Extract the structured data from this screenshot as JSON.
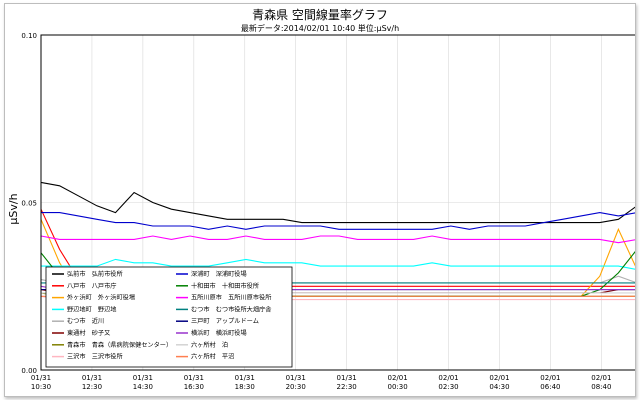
{
  "chart_data": {
    "type": "line",
    "title": "青森県 空間線量率グラフ",
    "subtitle": "最新データ:2014/02/01 10:40  単位:μSv/h",
    "ylabel": "μSv/h",
    "xlabel": "",
    "ylim": [
      0,
      0.1
    ],
    "yticks": [
      "0.00",
      "0.05",
      "0.10"
    ],
    "grid": true,
    "legend_position": "bottom-left-inside",
    "x_ticks": [
      {
        "date": "01/31",
        "time": "10:30"
      },
      {
        "date": "01/31",
        "time": "12:30"
      },
      {
        "date": "01/31",
        "time": "14:30"
      },
      {
        "date": "01/31",
        "time": "16:30"
      },
      {
        "date": "01/31",
        "time": "18:30"
      },
      {
        "date": "01/31",
        "time": "20:30"
      },
      {
        "date": "01/31",
        "time": "22:30"
      },
      {
        "date": "02/01",
        "time": "00:30"
      },
      {
        "date": "02/01",
        "time": "02:30"
      },
      {
        "date": "02/01",
        "time": "04:30"
      },
      {
        "date": "02/01",
        "time": "06:40"
      },
      {
        "date": "02/01",
        "time": "08:40"
      }
    ],
    "series": [
      {
        "name": "弘前市　弘前市役所",
        "color": "#000000",
        "values": [
          0.056,
          0.055,
          0.052,
          0.049,
          0.047,
          0.053,
          0.05,
          0.048,
          0.047,
          0.046,
          0.045,
          0.045,
          0.045,
          0.045,
          0.044,
          0.044,
          0.044,
          0.044,
          0.044,
          0.044,
          0.044,
          0.044,
          0.044,
          0.044,
          0.044,
          0.044,
          0.044,
          0.044,
          0.044,
          0.044,
          0.044,
          0.045,
          0.049
        ]
      },
      {
        "name": "八戸市　八戸市庁",
        "color": "#ff0000",
        "values": [
          0.048,
          0.036,
          0.027,
          0.025,
          0.025,
          0.025,
          0.025,
          0.025,
          0.025,
          0.025,
          0.025,
          0.025,
          0.025,
          0.025,
          0.025,
          0.025,
          0.025,
          0.025,
          0.025,
          0.025,
          0.025,
          0.025,
          0.025,
          0.025,
          0.025,
          0.025,
          0.025,
          0.025,
          0.025,
          0.025,
          0.025,
          0.025,
          0.025
        ]
      },
      {
        "name": "外ヶ浜町　外ヶ浜町役場",
        "color": "#ffa500",
        "values": [
          0.045,
          0.032,
          0.023,
          0.022,
          0.022,
          0.022,
          0.022,
          0.022,
          0.022,
          0.022,
          0.022,
          0.022,
          0.022,
          0.022,
          0.022,
          0.022,
          0.022,
          0.022,
          0.022,
          0.022,
          0.022,
          0.022,
          0.022,
          0.022,
          0.022,
          0.022,
          0.022,
          0.022,
          0.022,
          0.022,
          0.028,
          0.042,
          0.03
        ]
      },
      {
        "name": "野辺地町　野辺地",
        "color": "#00ffff",
        "values": [
          0.031,
          0.031,
          0.031,
          0.031,
          0.033,
          0.032,
          0.032,
          0.031,
          0.031,
          0.031,
          0.032,
          0.033,
          0.032,
          0.032,
          0.032,
          0.031,
          0.031,
          0.031,
          0.031,
          0.031,
          0.031,
          0.032,
          0.031,
          0.031,
          0.031,
          0.031,
          0.031,
          0.031,
          0.031,
          0.031,
          0.031,
          0.031,
          0.03
        ]
      },
      {
        "name": "むつ市　近川",
        "color": "#b0b0b0",
        "values": [
          0.027,
          0.026,
          0.026,
          0.026,
          0.026,
          0.026,
          0.026,
          0.026,
          0.026,
          0.026,
          0.026,
          0.026,
          0.026,
          0.026,
          0.026,
          0.026,
          0.026,
          0.026,
          0.026,
          0.026,
          0.026,
          0.026,
          0.026,
          0.026,
          0.026,
          0.026,
          0.026,
          0.026,
          0.026,
          0.026,
          0.026,
          0.028,
          0.026
        ]
      },
      {
        "name": "東通村　砂子又",
        "color": "#800000",
        "values": [
          0.024,
          0.023,
          0.023,
          0.023,
          0.023,
          0.023,
          0.023,
          0.023,
          0.023,
          0.023,
          0.023,
          0.023,
          0.023,
          0.023,
          0.023,
          0.023,
          0.023,
          0.023,
          0.023,
          0.023,
          0.023,
          0.023,
          0.023,
          0.023,
          0.023,
          0.023,
          0.023,
          0.023,
          0.023,
          0.023,
          0.023,
          0.024,
          0.024
        ]
      },
      {
        "name": "青森市　青森（県病院保健センター）",
        "color": "#808000",
        "values": [
          0.023,
          0.022,
          0.022,
          0.022,
          0.022,
          0.022,
          0.022,
          0.022,
          0.022,
          0.022,
          0.022,
          0.022,
          0.022,
          0.022,
          0.022,
          0.022,
          0.022,
          0.022,
          0.022,
          0.022,
          0.022,
          0.022,
          0.022,
          0.022,
          0.022,
          0.022,
          0.022,
          0.022,
          0.022,
          0.022,
          0.022,
          0.022,
          0.022
        ]
      },
      {
        "name": "三沢市　三沢市役所",
        "color": "#ffb6c1",
        "values": [
          0.022,
          0.021,
          0.021,
          0.021,
          0.021,
          0.021,
          0.021,
          0.021,
          0.021,
          0.021,
          0.021,
          0.021,
          0.021,
          0.021,
          0.021,
          0.021,
          0.021,
          0.021,
          0.021,
          0.021,
          0.021,
          0.021,
          0.021,
          0.021,
          0.021,
          0.021,
          0.021,
          0.021,
          0.021,
          0.021,
          0.021,
          0.021,
          0.021
        ]
      },
      {
        "name": "深浦町　深浦町役場",
        "color": "#0000cd",
        "values": [
          0.047,
          0.047,
          0.046,
          0.045,
          0.044,
          0.044,
          0.043,
          0.043,
          0.043,
          0.042,
          0.043,
          0.042,
          0.043,
          0.043,
          0.043,
          0.043,
          0.042,
          0.042,
          0.042,
          0.042,
          0.042,
          0.042,
          0.043,
          0.042,
          0.043,
          0.043,
          0.043,
          0.044,
          0.045,
          0.046,
          0.047,
          0.046,
          0.047
        ]
      },
      {
        "name": "十和田市　十和田市役所",
        "color": "#008000",
        "values": [
          0.035,
          0.028,
          0.023,
          0.022,
          0.022,
          0.022,
          0.022,
          0.022,
          0.022,
          0.022,
          0.022,
          0.022,
          0.022,
          0.022,
          0.022,
          0.022,
          0.022,
          0.022,
          0.022,
          0.022,
          0.022,
          0.022,
          0.022,
          0.022,
          0.022,
          0.022,
          0.022,
          0.022,
          0.022,
          0.022,
          0.024,
          0.029,
          0.036
        ]
      },
      {
        "name": "五所川原市　五所川原市役所",
        "color": "#ff00ff",
        "values": [
          0.04,
          0.039,
          0.039,
          0.039,
          0.039,
          0.039,
          0.04,
          0.039,
          0.04,
          0.039,
          0.039,
          0.04,
          0.039,
          0.039,
          0.039,
          0.04,
          0.04,
          0.039,
          0.039,
          0.039,
          0.039,
          0.04,
          0.039,
          0.039,
          0.039,
          0.039,
          0.039,
          0.039,
          0.039,
          0.039,
          0.039,
          0.038,
          0.039
        ]
      },
      {
        "name": "むつ市　むつ市役所大畑庁舎",
        "color": "#008080",
        "values": [
          0.026,
          0.026,
          0.026,
          0.026,
          0.026,
          0.026,
          0.026,
          0.026,
          0.026,
          0.026,
          0.026,
          0.026,
          0.026,
          0.026,
          0.026,
          0.026,
          0.026,
          0.026,
          0.026,
          0.026,
          0.026,
          0.026,
          0.026,
          0.026,
          0.026,
          0.026,
          0.026,
          0.026,
          0.026,
          0.026,
          0.026,
          0.026,
          0.026
        ]
      },
      {
        "name": "三戸町　アップルドーム",
        "color": "#000080",
        "values": [
          0.024,
          0.024,
          0.024,
          0.024,
          0.024,
          0.024,
          0.024,
          0.024,
          0.024,
          0.024,
          0.024,
          0.024,
          0.024,
          0.024,
          0.024,
          0.024,
          0.024,
          0.024,
          0.024,
          0.024,
          0.024,
          0.024,
          0.024,
          0.024,
          0.024,
          0.024,
          0.024,
          0.024,
          0.024,
          0.024,
          0.024,
          0.024,
          0.024
        ]
      },
      {
        "name": "横浜町　横浜町役場",
        "color": "#9932cc",
        "values": [
          0.025,
          0.024,
          0.024,
          0.024,
          0.024,
          0.024,
          0.024,
          0.024,
          0.024,
          0.024,
          0.024,
          0.024,
          0.024,
          0.024,
          0.024,
          0.024,
          0.024,
          0.024,
          0.024,
          0.024,
          0.024,
          0.024,
          0.024,
          0.024,
          0.024,
          0.024,
          0.024,
          0.024,
          0.024,
          0.024,
          0.024,
          0.024,
          0.024
        ]
      },
      {
        "name": "六ヶ所村　泊",
        "color": "#d3d3d3",
        "values": [
          0.023,
          0.023,
          0.023,
          0.023,
          0.023,
          0.023,
          0.023,
          0.023,
          0.023,
          0.023,
          0.023,
          0.023,
          0.023,
          0.023,
          0.023,
          0.023,
          0.023,
          0.023,
          0.023,
          0.023,
          0.023,
          0.023,
          0.023,
          0.023,
          0.023,
          0.023,
          0.023,
          0.023,
          0.023,
          0.023,
          0.023,
          0.023,
          0.023
        ]
      },
      {
        "name": "六ヶ所村　平沼",
        "color": "#ff7f50",
        "values": [
          0.022,
          0.022,
          0.022,
          0.022,
          0.022,
          0.022,
          0.022,
          0.022,
          0.022,
          0.022,
          0.022,
          0.022,
          0.022,
          0.022,
          0.022,
          0.022,
          0.022,
          0.022,
          0.022,
          0.022,
          0.022,
          0.022,
          0.022,
          0.022,
          0.022,
          0.022,
          0.022,
          0.022,
          0.022,
          0.022,
          0.022,
          0.022,
          0.022
        ]
      }
    ]
  }
}
